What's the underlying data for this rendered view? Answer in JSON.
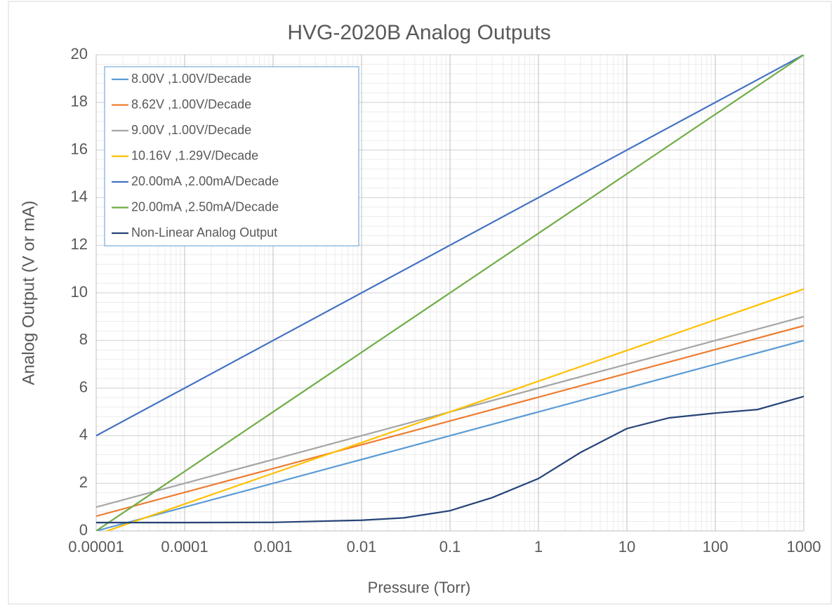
{
  "chart_data": {
    "type": "line",
    "title": "HVG-2020B Analog Outputs",
    "x_label": "Pressure (Torr)",
    "y_label": "Analog Output (V or mA)",
    "log_x": true,
    "grid": true,
    "legend": "top-left",
    "xlim": [
      1e-05,
      1000
    ],
    "xticks": [
      1e-05,
      0.0001,
      0.001,
      0.01,
      0.1,
      1,
      10,
      100,
      1000
    ],
    "ylim": [
      0,
      20
    ],
    "yticks": [
      0,
      2,
      4,
      6,
      8,
      10,
      12,
      14,
      16,
      18,
      20
    ],
    "series": [
      {
        "name": "8.00V ,1.00V/Decade",
        "color": "#5b9bd5",
        "x": [
          1e-05,
          1000
        ],
        "values": [
          0,
          8
        ]
      },
      {
        "name": "8.62V ,1.00V/Decade",
        "color": "#ed7d31",
        "x": [
          1e-05,
          1000
        ],
        "values": [
          0.62,
          8.62
        ]
      },
      {
        "name": "9.00V ,1.00V/Decade",
        "color": "#a5a5a5",
        "x": [
          1e-05,
          1000
        ],
        "values": [
          1,
          9
        ]
      },
      {
        "name": "10.16V ,1.29V/Decade",
        "color": "#ffc000",
        "x": [
          1e-05,
          1000
        ],
        "values": [
          -0.16,
          10.16
        ]
      },
      {
        "name": "20.00mA ,2.00mA/Decade",
        "color": "#4472c4",
        "x": [
          1e-05,
          1000
        ],
        "values": [
          4,
          20
        ]
      },
      {
        "name": "20.00mA ,2.50mA/Decade",
        "color": "#70ad47",
        "x": [
          1e-05,
          1000
        ],
        "values": [
          0,
          20
        ]
      },
      {
        "name": "Non-Linear Analog Output",
        "color": "#264478",
        "x": [
          1e-05,
          0.0001,
          0.001,
          0.01,
          0.03,
          0.1,
          0.3,
          1,
          3,
          10,
          30,
          100,
          300,
          1000
        ],
        "values": [
          0.35,
          0.35,
          0.36,
          0.45,
          0.55,
          0.85,
          1.4,
          2.2,
          3.3,
          4.3,
          4.75,
          4.95,
          5.1,
          5.65
        ]
      }
    ]
  }
}
